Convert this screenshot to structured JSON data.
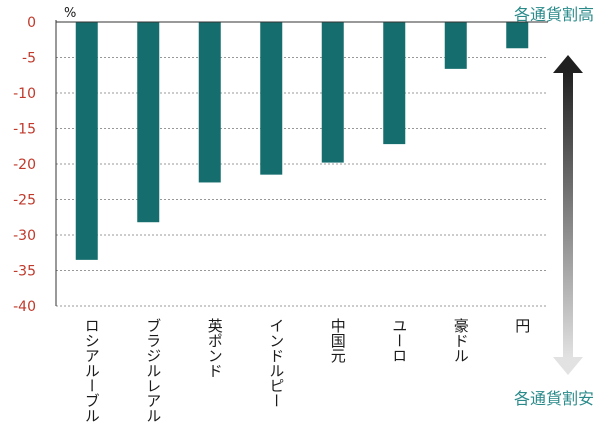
{
  "chart_data": {
    "type": "bar",
    "unit_label": "%",
    "categories": [
      "ロシアルーブル",
      "ブラジルレアル",
      "英ポンド",
      "インドルピー",
      "中国元",
      "ユーロ",
      "豪ドル",
      "円"
    ],
    "values": [
      -33.5,
      -28.2,
      -22.6,
      -21.5,
      -19.8,
      -17.2,
      -6.6,
      -3.7
    ],
    "ylim": [
      -40,
      0
    ],
    "yticks": [
      0,
      -5,
      -10,
      -15,
      -20,
      -25,
      -30,
      -35,
      -40
    ],
    "grid": true,
    "bar_color": "#166d6e",
    "tick_color": "#c0392b",
    "annotation_top": "各通貨割高",
    "annotation_bottom": "各通貨割安",
    "annotation_color": "#2a8a8a"
  }
}
